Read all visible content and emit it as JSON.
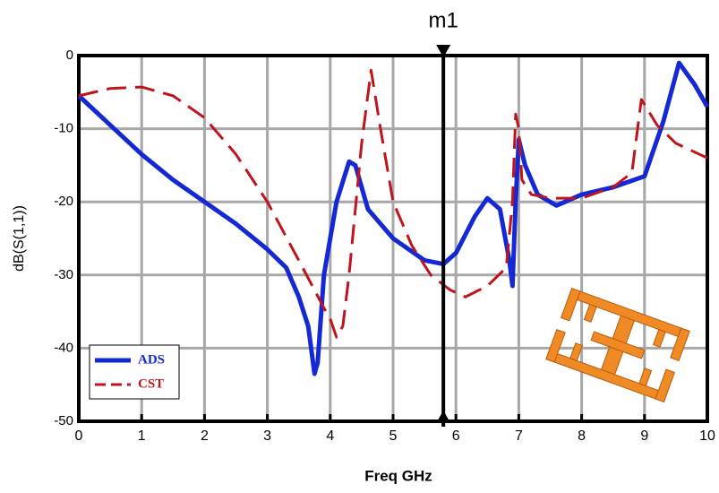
{
  "chart_data": {
    "type": "line",
    "xlabel": "Freq GHz",
    "ylabel": "dB(S(1,1))",
    "xlim": [
      0,
      10
    ],
    "ylim": [
      -50,
      0
    ],
    "xticks": [
      0,
      1,
      2,
      3,
      4,
      5,
      6,
      7,
      8,
      9,
      10
    ],
    "yticks": [
      -50,
      -40,
      -30,
      -20,
      -10,
      0
    ],
    "grid": true,
    "legend": "lower left",
    "marker": {
      "label": "m1",
      "x": 5.8
    },
    "series": [
      {
        "name": "ADS",
        "color": "#1428d4",
        "dash": false,
        "x": [
          0,
          0.5,
          1,
          1.5,
          2,
          2.5,
          3,
          3.3,
          3.5,
          3.65,
          3.75,
          3.8,
          3.9,
          4.1,
          4.3,
          4.4,
          4.6,
          5,
          5.5,
          5.8,
          6,
          6.3,
          6.5,
          6.7,
          6.85,
          6.9,
          6.95,
          7,
          7.1,
          7.3,
          7.6,
          8,
          8.5,
          9,
          9.3,
          9.55,
          9.8,
          10
        ],
        "values": [
          -5.5,
          -9.5,
          -13.5,
          -17,
          -20,
          -23,
          -26.5,
          -29,
          -33,
          -37,
          -43.5,
          -42,
          -30,
          -20,
          -14.5,
          -15,
          -21,
          -25,
          -28,
          -28.5,
          -27,
          -22,
          -19.5,
          -21,
          -28,
          -31.5,
          -20,
          -11.5,
          -15,
          -19,
          -20.5,
          -19,
          -18,
          -16.5,
          -9,
          -1,
          -4,
          -7
        ]
      },
      {
        "name": "CST",
        "color": "#c0141c",
        "dash": true,
        "x": [
          0,
          0.5,
          1,
          1.5,
          2,
          2.5,
          3,
          3.5,
          3.9,
          4,
          4.1,
          4.2,
          4.3,
          4.5,
          4.65,
          4.8,
          5,
          5.3,
          5.6,
          5.9,
          6.15,
          6.5,
          6.8,
          6.9,
          6.95,
          7,
          7.05,
          7.2,
          7.5,
          8,
          8.5,
          8.8,
          8.95,
          9.2,
          9.5,
          10
        ],
        "values": [
          -5.5,
          -4.5,
          -4.3,
          -5.5,
          -8.5,
          -13.5,
          -20,
          -28,
          -34.5,
          -36,
          -38.5,
          -37,
          -30,
          -12,
          -2,
          -10,
          -20,
          -26,
          -30,
          -32,
          -33,
          -31.5,
          -29,
          -20,
          -8,
          -10,
          -17,
          -19,
          -19.5,
          -19.5,
          -18,
          -16,
          -6,
          -9.5,
          -12,
          -14
        ]
      }
    ]
  }
}
